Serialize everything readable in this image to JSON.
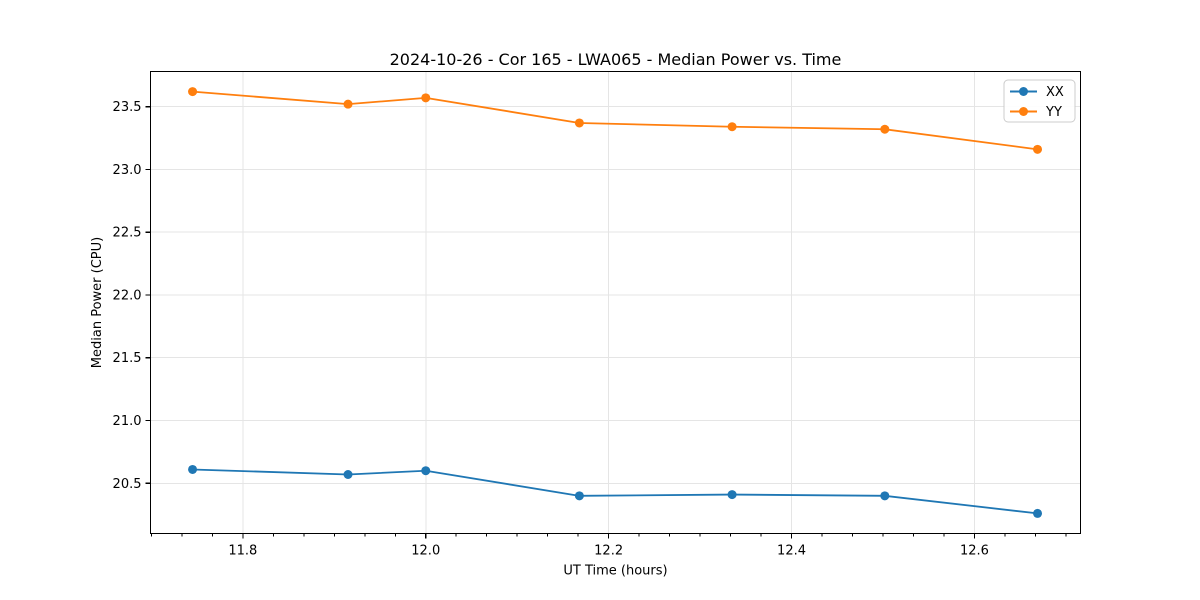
{
  "chart_data": {
    "type": "line",
    "title": "2024-10-26 - Cor 165 - LWA065 - Median Power vs. Time",
    "xlabel": "UT Time (hours)",
    "ylabel": "Median Power (CPU)",
    "x": [
      11.745,
      11.915,
      12.0,
      12.168,
      12.335,
      12.502,
      12.669
    ],
    "series": [
      {
        "name": "XX",
        "color": "#1f77b4",
        "values": [
          20.61,
          20.57,
          20.6,
          20.4,
          20.41,
          20.4,
          20.26
        ]
      },
      {
        "name": "YY",
        "color": "#ff7f0e",
        "values": [
          23.62,
          23.52,
          23.57,
          23.37,
          23.34,
          23.32,
          23.16
        ]
      }
    ],
    "xlim": [
      11.699,
      12.716
    ],
    "ylim": [
      20.1,
      23.78
    ],
    "xticks": [
      11.8,
      12.0,
      12.2,
      12.4,
      12.6
    ],
    "yticks": [
      20.5,
      21.0,
      21.5,
      22.0,
      22.5,
      23.0,
      23.5
    ],
    "x_minor_step": 0.033333333,
    "tick_decimals": 1,
    "grid": true,
    "legend": {
      "position": "upper right",
      "entries": [
        "XX",
        "YY"
      ]
    },
    "colors": {
      "background": "#ffffff",
      "grid": "#e5e5e5",
      "spine": "#000000",
      "text": "#000000",
      "legend_border": "#cccccc",
      "legend_bg": "#ffffff"
    }
  }
}
